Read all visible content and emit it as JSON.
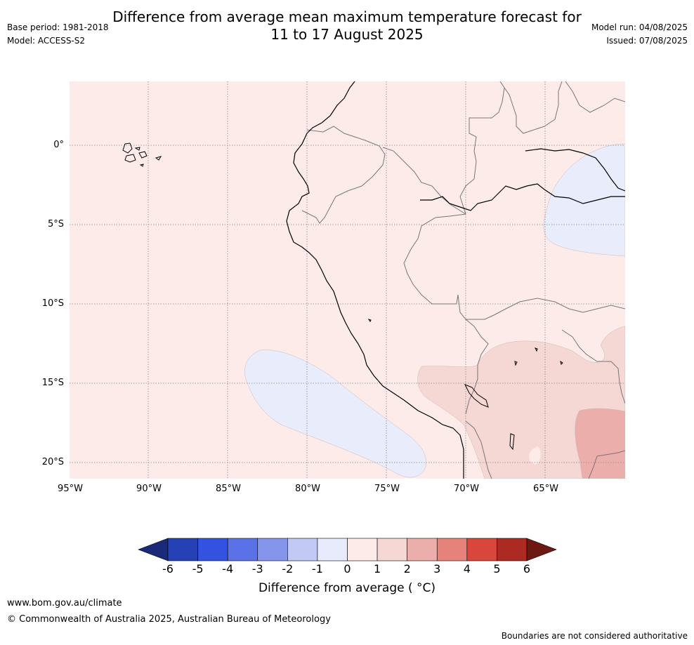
{
  "header": {
    "title_line1": "Difference from average mean maximum temperature forecast for",
    "title_line2": "11 to 17 August 2025",
    "base_period": "Base period: 1981-2018",
    "model": "Model: ACCESS-S2",
    "model_run": "Model run: 04/08/2025",
    "issued": "Issued: 07/08/2025"
  },
  "map": {
    "lat_labels": [
      "0°",
      "5°S",
      "10°S",
      "15°S",
      "20°S"
    ],
    "lon_labels": [
      "95°W",
      "90°W",
      "85°W",
      "80°W",
      "75°W",
      "70°W",
      "65°W"
    ],
    "background_anomaly_color": "#fcebe9",
    "negative_anomaly_color": "#e8ecfb",
    "positive_1_2_color": "#f5d7d3",
    "positive_2_3_color": "#ecaeaa"
  },
  "colorbar": {
    "ticks": [
      "-6",
      "-5",
      "-4",
      "-3",
      "-2",
      "-1",
      "0",
      "1",
      "2",
      "3",
      "4",
      "5",
      "6"
    ],
    "colors": [
      "#1a2a78",
      "#2641b4",
      "#3352e0",
      "#5b72e6",
      "#8595eb",
      "#c2c9f5",
      "#e8ebfb",
      "#fcebe9",
      "#f5d7d3",
      "#ecaeaa",
      "#e5837b",
      "#d9463c",
      "#ab2a22",
      "#6e1812"
    ],
    "label": "Difference from average ( °C)"
  },
  "footer": {
    "website": "www.bom.gov.au/climate",
    "copyright": "© Commonwealth of Australia 2025, Australian Bureau of Meteorology",
    "disclaimer": "Boundaries are not considered authoritative"
  }
}
